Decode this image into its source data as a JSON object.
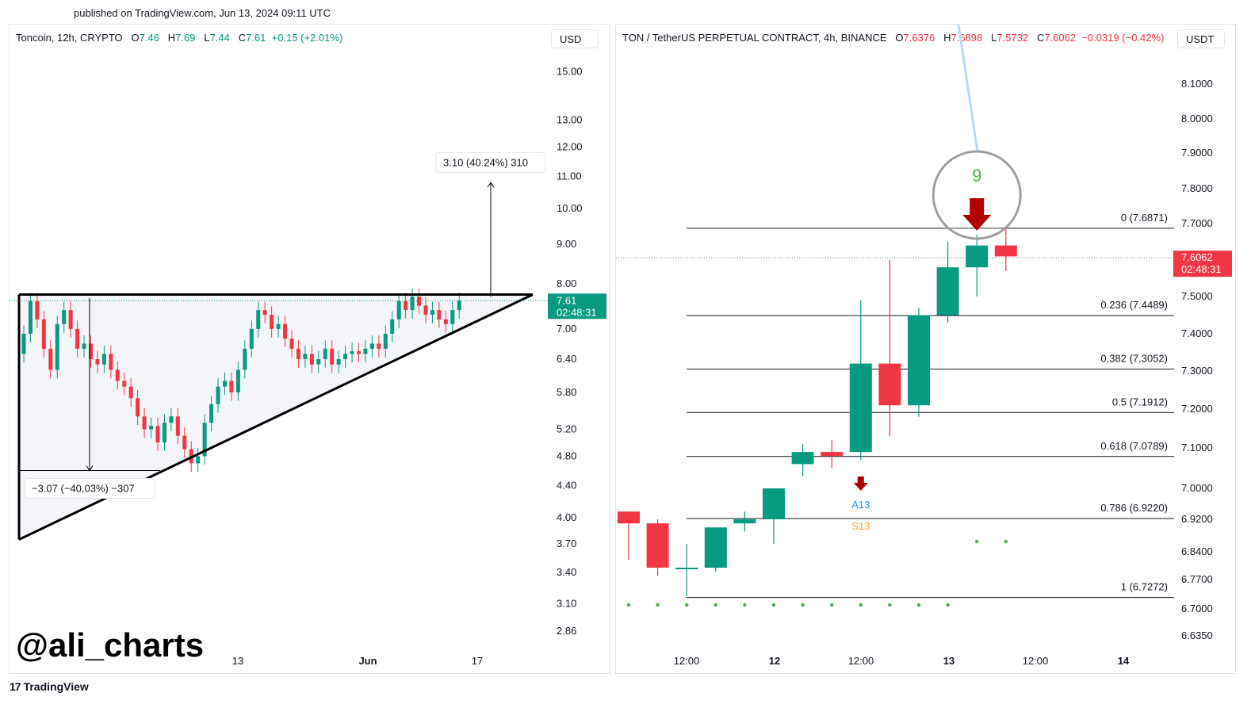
{
  "published": "published on TradingView.com, Jun 13, 2024 09:11 UTC",
  "watermark": "@ali_charts",
  "footer": {
    "brand": "TradingView",
    "logo": "17"
  },
  "left": {
    "header": {
      "symbol": "Toncoin, 12h, CRYPTO",
      "o_label": "O",
      "o": "7.46",
      "h_label": "H",
      "h": "7.69",
      "l_label": "L",
      "l": "7.44",
      "c_label": "C",
      "c": "7.61",
      "change": "+0.15 (+2.01%)"
    },
    "currency": "USD",
    "price_tag": {
      "price": "7.61",
      "time": "02:48:31"
    },
    "measure_up": "3.10 (40.24%) 310",
    "measure_down": "−3.07 (−40.03%) −307"
  },
  "right": {
    "header": {
      "symbol": "TON / TetherUS PERPETUAL CONTRACT, 4h, BINANCE",
      "o_label": "O",
      "o": "7.6376",
      "h_label": "H",
      "h": "7.6898",
      "l_label": "L",
      "l": "7.5732",
      "c_label": "C",
      "c": "7.6062",
      "change": "−0.0319 (−0.42%)"
    },
    "currency": "USDT",
    "price_tag": {
      "price": "7.6062",
      "time": "02:48:31"
    },
    "td_count": "9",
    "labels": {
      "a13": "A13",
      "s13": "S13"
    }
  },
  "colors": {
    "up": "#089981",
    "down": "#f23645",
    "fib": "#131722",
    "circle": "#9e9e9e",
    "arrow": "#b20000"
  },
  "chart_data": [
    {
      "type": "candlestick",
      "title": "Toncoin, 12h, CRYPTO",
      "y_scale": "log",
      "ylabel": "USD",
      "y_ticks": [
        15.0,
        13.0,
        12.0,
        11.0,
        10.0,
        9.0,
        8.0,
        7.0,
        6.4,
        5.8,
        5.2,
        4.8,
        4.4,
        4.0,
        3.7,
        3.4,
        3.1,
        2.86
      ],
      "x_ticks": [
        "13",
        "Jun",
        "17"
      ],
      "last_price": 7.61,
      "close_series": [
        6.9,
        7.6,
        7.2,
        6.6,
        6.2,
        7.1,
        7.4,
        7.0,
        6.6,
        6.7,
        6.4,
        6.3,
        6.5,
        6.2,
        6.0,
        5.9,
        5.7,
        5.4,
        5.2,
        5.25,
        5.0,
        5.3,
        5.4,
        5.1,
        4.9,
        4.7,
        4.8,
        5.3,
        5.6,
        5.9,
        6.0,
        5.8,
        6.2,
        6.6,
        7.0,
        7.4,
        7.3,
        7.0,
        7.1,
        6.8,
        6.6,
        6.4,
        6.5,
        6.3,
        6.4,
        6.6,
        6.3,
        6.4,
        6.5,
        6.55,
        6.5,
        6.6,
        6.7,
        6.6,
        6.9,
        7.2,
        7.6,
        7.4,
        7.7,
        7.5,
        7.3,
        7.4,
        7.2,
        7.1,
        7.4,
        7.61
      ],
      "patterns": [
        {
          "name": "ascending triangle",
          "resistance": 7.75,
          "support_from": 3.75,
          "support_to": 7.75
        }
      ],
      "measurements": [
        {
          "label": "3.10 (40.24%) 310",
          "from": 7.7,
          "to": 10.8
        },
        {
          "label": "−3.07 (−40.03%) −307",
          "from": 7.67,
          "to": 4.6
        }
      ]
    },
    {
      "type": "candlestick",
      "title": "TON / TetherUS PERPETUAL CONTRACT, 4h, BINANCE",
      "ylabel": "USDT",
      "y_ticks": [
        8.1,
        8.0,
        7.9,
        7.8,
        7.7,
        7.5,
        7.4,
        7.3,
        7.2,
        7.1,
        7.0,
        6.92,
        6.84,
        6.77,
        6.7,
        6.635
      ],
      "x_ticks": [
        "12:00",
        "12",
        "12:00",
        "13",
        "12:00",
        "14"
      ],
      "last_price": 7.6062,
      "candles": [
        {
          "o": 6.94,
          "h": 6.94,
          "l": 6.82,
          "c": 6.91
        },
        {
          "o": 6.91,
          "h": 6.92,
          "l": 6.78,
          "c": 6.8
        },
        {
          "o": 6.8,
          "h": 6.86,
          "l": 6.73,
          "c": 6.8
        },
        {
          "o": 6.8,
          "h": 6.9,
          "l": 6.79,
          "c": 6.9
        },
        {
          "o": 6.91,
          "h": 6.94,
          "l": 6.89,
          "c": 6.92
        },
        {
          "o": 6.92,
          "h": 7.0,
          "l": 6.86,
          "c": 7.0
        },
        {
          "o": 7.06,
          "h": 7.11,
          "l": 7.03,
          "c": 7.09
        },
        {
          "o": 7.09,
          "h": 7.12,
          "l": 7.05,
          "c": 7.08
        },
        {
          "o": 7.09,
          "h": 7.49,
          "l": 7.07,
          "c": 7.32
        },
        {
          "o": 7.32,
          "h": 7.6,
          "l": 7.13,
          "c": 7.21
        },
        {
          "o": 7.21,
          "h": 7.47,
          "l": 7.18,
          "c": 7.45
        },
        {
          "o": 7.45,
          "h": 7.65,
          "l": 7.43,
          "c": 7.58
        },
        {
          "o": 7.58,
          "h": 7.67,
          "l": 7.5,
          "c": 7.64
        },
        {
          "o": 7.64,
          "h": 7.69,
          "l": 7.57,
          "c": 7.61
        }
      ],
      "fibonacci": [
        {
          "level": "0",
          "price": 7.6871
        },
        {
          "level": "0.236",
          "price": 7.4489
        },
        {
          "level": "0.382",
          "price": 7.3052
        },
        {
          "level": "0.5",
          "price": 7.1912
        },
        {
          "level": "0.618",
          "price": 7.0789
        },
        {
          "level": "0.786",
          "price": 6.922
        },
        {
          "level": "1",
          "price": 6.7272
        }
      ],
      "annotations": [
        {
          "text": "9",
          "type": "TD sequential sell signal",
          "candle_index": 12
        },
        {
          "text": "A13",
          "candle_index": 8
        },
        {
          "text": "S13",
          "candle_index": 8
        }
      ]
    }
  ]
}
